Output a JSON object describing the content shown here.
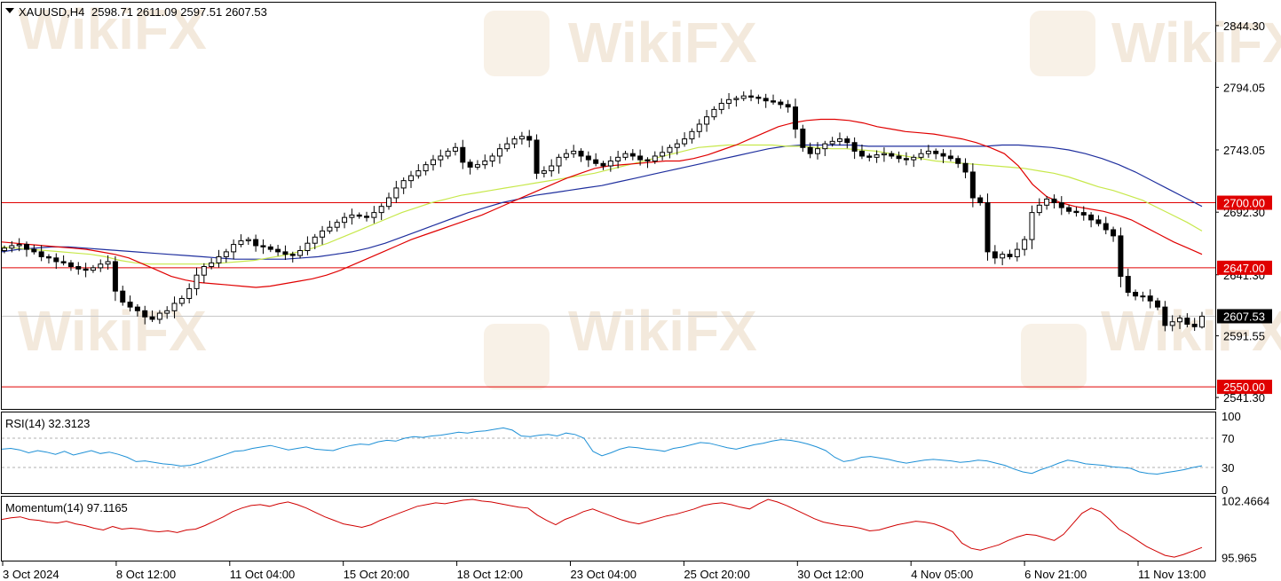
{
  "header": {
    "dropdown_icon": "triangle-down-icon",
    "symbol": "XAUUSD,H4",
    "ohlc": "2598.71 2611.09 2597.51 2607.53"
  },
  "watermark": "WikiFX",
  "colors": {
    "candle": "#000000",
    "level_line": "#e00000",
    "ma_fast": "#e00000",
    "ma_mid": "#c7e84b",
    "ma_slow": "#1f2f9e",
    "rsi": "#1e90d6",
    "momentum": "#d00000",
    "current_price_bg": "#000000"
  },
  "chart_data": [
    {
      "type": "candlestick",
      "title": "XAUUSD,H4",
      "ohlc_last": [
        2598.71,
        2611.09,
        2597.51,
        2607.53
      ],
      "y_ticks": [
        "2844.30",
        "2794.05",
        "2743.05",
        "2692.30",
        "2641.30",
        "2591.55",
        "2541.30"
      ],
      "price_levels": [
        "2700.00",
        "2647.00",
        "2550.00"
      ],
      "current_price": "2607.53",
      "x_ticks": [
        "3 Oct 2024",
        "8 Oct 12:00",
        "11 Oct 04:00",
        "15 Oct 20:00",
        "18 Oct 12:00",
        "23 Oct 04:00",
        "25 Oct 20:00",
        "30 Oct 12:00",
        "4 Nov 05:00",
        "6 Nov 21:00",
        "11 Nov 13:00"
      ],
      "close_path": [
        2663,
        2665,
        2666,
        2662,
        2660,
        2656,
        2655,
        2652,
        2651,
        2648,
        2646,
        2645,
        2647,
        2650,
        2652,
        2628,
        2619,
        2615,
        2612,
        2607,
        2605,
        2610,
        2612,
        2618,
        2622,
        2630,
        2641,
        2648,
        2651,
        2656,
        2660,
        2666,
        2669,
        2670,
        2665,
        2664,
        2662,
        2660,
        2658,
        2657,
        2661,
        2667,
        2672,
        2677,
        2680,
        2684,
        2688,
        2690,
        2689,
        2688,
        2692,
        2697,
        2704,
        2712,
        2718,
        2722,
        2726,
        2731,
        2735,
        2738,
        2742,
        2745,
        2733,
        2729,
        2731,
        2734,
        2738,
        2744,
        2748,
        2752,
        2754,
        2751,
        2724,
        2726,
        2730,
        2737,
        2740,
        2742,
        2738,
        2735,
        2732,
        2730,
        2734,
        2737,
        2740,
        2738,
        2735,
        2734,
        2738,
        2741,
        2745,
        2748,
        2752,
        2758,
        2764,
        2770,
        2776,
        2781,
        2784,
        2785,
        2787,
        2786,
        2785,
        2783,
        2782,
        2780,
        2778,
        2760,
        2745,
        2740,
        2744,
        2748,
        2750,
        2752,
        2749,
        2742,
        2738,
        2737,
        2739,
        2740,
        2738,
        2736,
        2735,
        2737,
        2740,
        2742,
        2740,
        2738,
        2736,
        2732,
        2725,
        2704,
        2700,
        2660,
        2655,
        2658,
        2656,
        2662,
        2670,
        2692,
        2698,
        2703,
        2700,
        2696,
        2693,
        2692,
        2690,
        2686,
        2683,
        2678,
        2673,
        2640,
        2627,
        2624,
        2624,
        2620,
        2615,
        2600,
        2603,
        2606,
        2601,
        2599,
        2607.53
      ],
      "ma_fast": [
        2668,
        2667,
        2666,
        2665,
        2664,
        2663,
        2662,
        2660,
        2658,
        2655,
        2650,
        2645,
        2640,
        2637,
        2635,
        2634,
        2633,
        2632,
        2631,
        2632,
        2634,
        2636,
        2638,
        2641,
        2645,
        2650,
        2655,
        2660,
        2665,
        2670,
        2674,
        2678,
        2682,
        2686,
        2690,
        2695,
        2700,
        2705,
        2710,
        2715,
        2720,
        2724,
        2728,
        2730,
        2731,
        2732,
        2733,
        2734,
        2734,
        2736,
        2739,
        2743,
        2747,
        2752,
        2757,
        2762,
        2765,
        2767,
        2768,
        2768,
        2767,
        2765,
        2762,
        2760,
        2758,
        2757,
        2756,
        2754,
        2752,
        2749,
        2745,
        2740,
        2730,
        2715,
        2705,
        2700,
        2697,
        2695,
        2693,
        2690,
        2686,
        2680,
        2674,
        2668,
        2663,
        2658
      ],
      "ma_mid": [
        2664,
        2663,
        2662,
        2661,
        2660,
        2659,
        2658,
        2656,
        2653,
        2651,
        2650,
        2650,
        2650,
        2650,
        2650,
        2651,
        2652,
        2653,
        2655,
        2657,
        2660,
        2663,
        2667,
        2672,
        2677,
        2682,
        2687,
        2692,
        2696,
        2700,
        2703,
        2706,
        2708,
        2710,
        2712,
        2714,
        2716,
        2718,
        2720,
        2722,
        2724,
        2727,
        2730,
        2733,
        2736,
        2739,
        2742,
        2745,
        2746,
        2747,
        2747,
        2747,
        2747,
        2746,
        2746,
        2745,
        2744,
        2744,
        2743,
        2742,
        2740,
        2738,
        2736,
        2734,
        2733,
        2732,
        2731,
        2730,
        2729,
        2728,
        2726,
        2724,
        2721,
        2717,
        2713,
        2710,
        2706,
        2702,
        2696,
        2690,
        2684,
        2677
      ],
      "ma_slow": [
        2660,
        2662,
        2663,
        2664,
        2664,
        2663,
        2662,
        2661,
        2660,
        2659,
        2658,
        2657,
        2656,
        2655,
        2654,
        2654,
        2654,
        2654,
        2655,
        2656,
        2658,
        2660,
        2663,
        2667,
        2672,
        2677,
        2682,
        2687,
        2692,
        2696,
        2700,
        2703,
        2706,
        2708,
        2710,
        2712,
        2714,
        2717,
        2720,
        2723,
        2726,
        2729,
        2732,
        2735,
        2738,
        2741,
        2744,
        2746,
        2747,
        2747,
        2747,
        2747,
        2746,
        2746,
        2746,
        2746,
        2746,
        2746,
        2746,
        2746,
        2747,
        2747,
        2746,
        2745,
        2743,
        2740,
        2736,
        2731,
        2725,
        2718,
        2711,
        2704,
        2697
      ],
      "ylim": [
        2532,
        2863
      ]
    },
    {
      "type": "line",
      "title": "RSI(14) 32.3123",
      "y_ticks": [
        "100",
        "70",
        "30",
        "0"
      ],
      "levels": [
        70,
        30
      ],
      "ylim": [
        -5,
        105
      ],
      "values": [
        55,
        56,
        54,
        50,
        53,
        51,
        48,
        52,
        47,
        50,
        53,
        49,
        51,
        48,
        44,
        38,
        39,
        37,
        35,
        34,
        32,
        33,
        36,
        40,
        44,
        48,
        52,
        53,
        56,
        58,
        60,
        57,
        54,
        56,
        58,
        55,
        54,
        53,
        57,
        60,
        62,
        61,
        65,
        67,
        66,
        70,
        72,
        71,
        73,
        74,
        76,
        78,
        77,
        79,
        80,
        82,
        84,
        81,
        73,
        72,
        74,
        75,
        73,
        77,
        75,
        70,
        52,
        46,
        50,
        55,
        58,
        57,
        55,
        54,
        52,
        56,
        58,
        61,
        64,
        63,
        60,
        57,
        55,
        58,
        61,
        63,
        66,
        68,
        67,
        65,
        62,
        58,
        53,
        44,
        38,
        40,
        44,
        45,
        43,
        41,
        38,
        36,
        38,
        40,
        41,
        40,
        39,
        37,
        38,
        40,
        39,
        36,
        33,
        28,
        24,
        22,
        27,
        31,
        36,
        40,
        38,
        35,
        34,
        33,
        31,
        30,
        29,
        24,
        22,
        21,
        23,
        25,
        27,
        30,
        32.3
      ],
      "series": [
        {
          "name": "RSI(14)"
        }
      ]
    },
    {
      "type": "line",
      "title": "Momentum(14) 97.1165",
      "y_ticks": [
        "102.4664",
        "95.965"
      ],
      "ylim": [
        95.6,
        102.9
      ],
      "values": [
        100.3,
        100.5,
        100.6,
        100.3,
        100.2,
        100.0,
        99.9,
        100.1,
        99.8,
        99.6,
        99.3,
        99.1,
        99.5,
        99.2,
        99.3,
        99.2,
        99.0,
        98.9,
        99.0,
        98.8,
        99.1,
        99.2,
        99.6,
        100.1,
        100.6,
        101.2,
        101.6,
        101.9,
        102.0,
        101.8,
        102.1,
        102.3,
        102.0,
        101.6,
        101.1,
        100.6,
        100.2,
        99.8,
        99.6,
        99.4,
        99.7,
        100.2,
        100.6,
        101.0,
        101.4,
        101.8,
        102.0,
        102.2,
        102.1,
        102.3,
        102.5,
        102.6,
        102.4,
        102.3,
        102.1,
        101.9,
        101.7,
        101.6,
        100.8,
        100.2,
        99.7,
        100.3,
        100.7,
        101.2,
        101.5,
        101.1,
        100.7,
        100.3,
        100.0,
        99.8,
        100.1,
        100.4,
        100.7,
        100.9,
        101.2,
        101.5,
        101.9,
        102.1,
        102.2,
        102.0,
        101.7,
        101.5,
        102.1,
        102.6,
        102.3,
        101.9,
        101.4,
        100.9,
        100.4,
        100.0,
        99.8,
        99.6,
        99.5,
        99.3,
        99.0,
        99.1,
        99.4,
        99.7,
        99.9,
        100.1,
        100.0,
        99.8,
        99.4,
        98.9,
        97.6,
        97.0,
        96.8,
        97.1,
        97.4,
        97.9,
        98.3,
        98.6,
        98.5,
        98.2,
        97.9,
        98.6,
        99.8,
        101.0,
        101.6,
        101.2,
        100.3,
        99.2,
        98.6,
        97.9,
        97.2,
        96.7,
        96.2,
        96.0,
        96.3,
        96.7,
        97.1
      ]
    }
  ]
}
